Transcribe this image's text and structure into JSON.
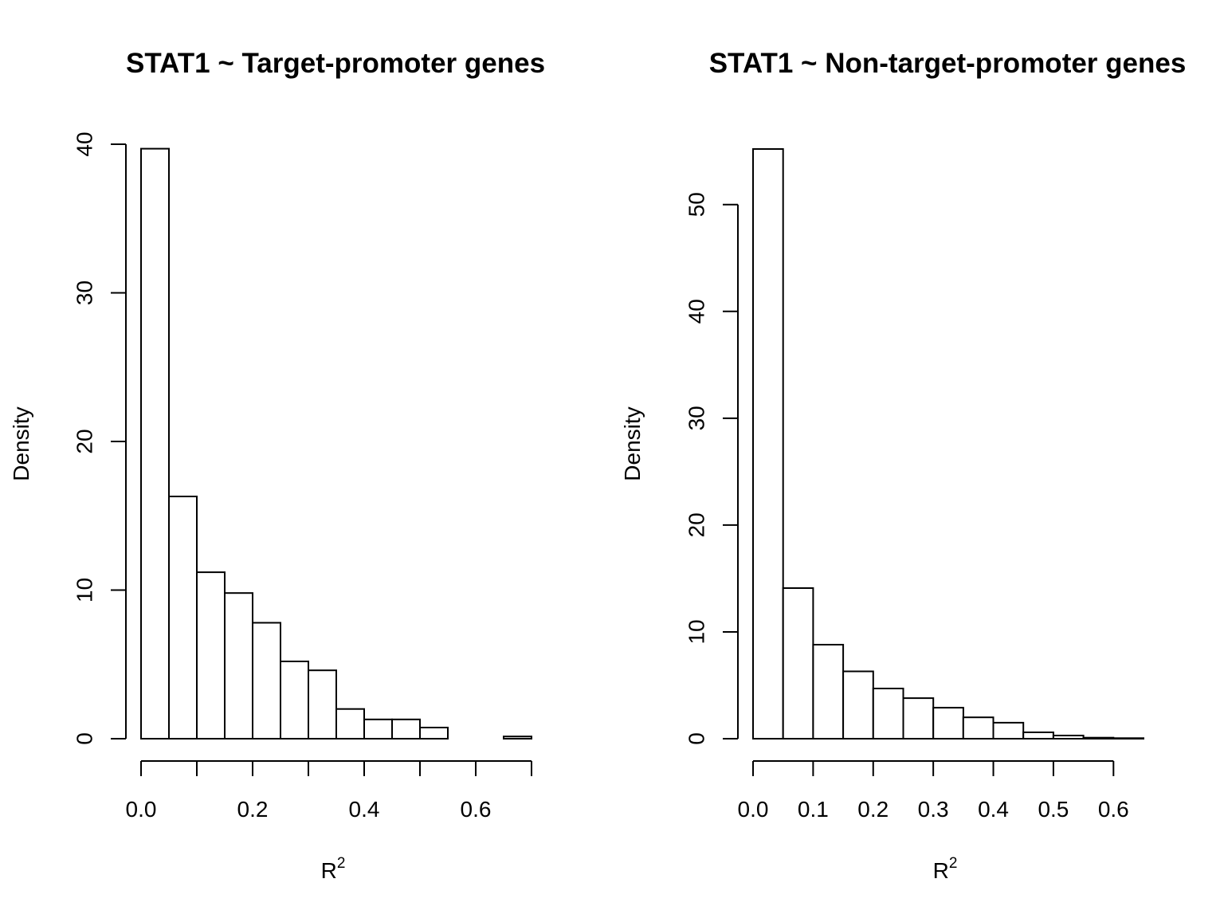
{
  "chart_data": [
    {
      "type": "bar",
      "title": "STAT1 ~ Target-promoter genes",
      "xlabel": "R",
      "xlabel_sup": "2",
      "ylabel": "Density",
      "bin_edges": [
        0.0,
        0.05,
        0.1,
        0.15,
        0.2,
        0.25,
        0.3,
        0.35,
        0.4,
        0.45,
        0.5,
        0.55,
        0.6,
        0.65,
        0.7
      ],
      "values": [
        39.7,
        16.3,
        11.2,
        9.8,
        7.8,
        5.2,
        4.6,
        2.0,
        1.3,
        1.3,
        0.75,
        0.0,
        0.0,
        0.15
      ],
      "xticks": [
        0.0,
        0.1,
        0.2,
        0.3,
        0.4,
        0.5,
        0.6,
        0.7
      ],
      "xtick_labels": [
        "0.0",
        "",
        "0.2",
        "",
        "0.4",
        "",
        "0.6",
        ""
      ],
      "yticks": [
        0,
        10,
        20,
        30,
        40
      ],
      "ytick_labels": [
        "0",
        "10",
        "20",
        "30",
        "40"
      ],
      "xlim": [
        0.0,
        0.7
      ],
      "ylim": [
        0,
        40
      ],
      "grid": false,
      "legend": "none"
    },
    {
      "type": "bar",
      "title": "STAT1 ~ Non-target-promoter genes",
      "xlabel": "R",
      "xlabel_sup": "2",
      "ylabel": "Density",
      "bin_edges": [
        0.0,
        0.05,
        0.1,
        0.15,
        0.2,
        0.25,
        0.3,
        0.35,
        0.4,
        0.45,
        0.5,
        0.55,
        0.6,
        0.65
      ],
      "values": [
        55.2,
        14.1,
        8.8,
        6.3,
        4.7,
        3.8,
        2.9,
        2.0,
        1.5,
        0.6,
        0.3,
        0.1,
        0.05
      ],
      "xticks": [
        0.0,
        0.1,
        0.2,
        0.3,
        0.4,
        0.5,
        0.6
      ],
      "xtick_labels": [
        "0.0",
        "0.1",
        "0.2",
        "0.3",
        "0.4",
        "0.5",
        "0.6"
      ],
      "yticks": [
        0,
        10,
        20,
        30,
        40,
        50
      ],
      "ytick_labels": [
        "0",
        "10",
        "20",
        "30",
        "40",
        "50"
      ],
      "xlim": [
        0.0,
        0.65
      ],
      "ylim": [
        0,
        55.2
      ],
      "grid": false,
      "legend": "none"
    }
  ]
}
